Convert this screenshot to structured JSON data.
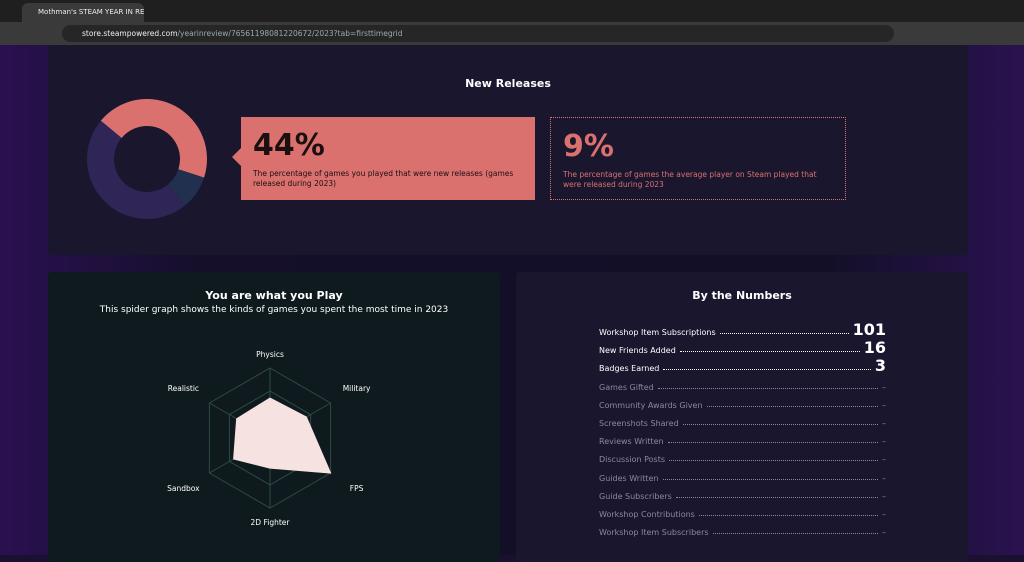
{
  "browser": {
    "tab_title": "Mothman's STEAM YEAR IN RE",
    "url_host": "store.steampowered.com",
    "url_path": "/yearinreview/76561198081220672/2023?tab=firsttimegrid"
  },
  "new_releases": {
    "title": "New Releases",
    "stats": [
      {
        "value": "44%",
        "text": "The percentage of games you played that were new releases (games released during 2023)"
      },
      {
        "value": "9%",
        "text": "The percentage of games the average player on Steam played that were released during 2023"
      }
    ]
  },
  "chart_data": [
    {
      "type": "pie",
      "values": [
        44,
        9,
        47
      ],
      "colors": [
        "#db716f",
        "#22304f",
        "#2f2556"
      ],
      "hole": 0.55
    },
    {
      "type": "radar",
      "title": "You are what you Play",
      "subtitle": "This spider graph shows the kinds of games you spent the most time in 2023",
      "categories": [
        "Physics",
        "Military",
        "FPS",
        "2D Fighter",
        "Sandbox",
        "Realistic"
      ],
      "values": [
        0.57,
        0.6,
        1.0,
        0.43,
        0.6,
        0.55
      ],
      "rlim": [
        0,
        1
      ],
      "rticks": [
        0.33,
        0.67,
        1.0
      ],
      "color": "#f6e3e1",
      "grid": true
    }
  ],
  "by_the_numbers": {
    "title": "By the Numbers",
    "rows": [
      [
        "Workshop Item Subscriptions",
        "101"
      ],
      [
        "New Friends Added",
        "16"
      ],
      [
        "Badges Earned",
        "3"
      ],
      [
        "Games Gifted",
        "–"
      ],
      [
        "Community Awards Given",
        "–"
      ],
      [
        "Screenshots Shared",
        "–"
      ],
      [
        "Reviews Written",
        "–"
      ],
      [
        "Discussion Posts",
        "–"
      ],
      [
        "Guides Written",
        "–"
      ],
      [
        "Guide Subscribers",
        "–"
      ],
      [
        "Workshop Contributions",
        "–"
      ],
      [
        "Workshop Item Subscribers",
        "–"
      ]
    ]
  }
}
